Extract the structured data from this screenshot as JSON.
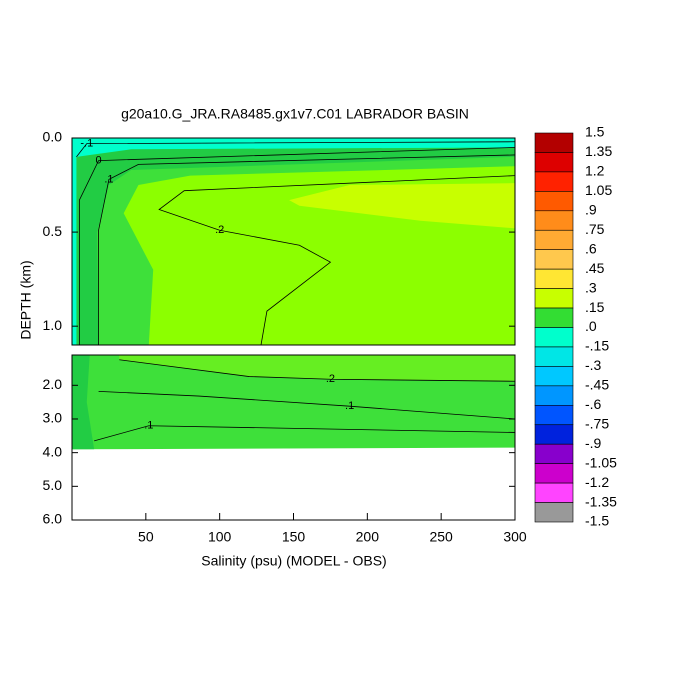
{
  "chart_data": {
    "type": "contour",
    "title": "g20a10.G_JRA.RA8485.gx1v7.C01 LABRADOR BASIN",
    "xlabel": "Salinity (psu) (MODEL - OBS)",
    "ylabel": "DEPTH (km)",
    "xlim": [
      0,
      300
    ],
    "xticks": [
      50,
      100,
      150,
      200,
      250,
      300
    ],
    "panels": [
      {
        "ylim": [
          0,
          1.1
        ],
        "yticks": [
          {
            "value": 0,
            "label": "0.0"
          },
          {
            "value": 0.5,
            "label": "0.5"
          },
          {
            "value": 1,
            "label": "1.0"
          }
        ],
        "regions": [
          {
            "color": "#22cc44",
            "points": [
              [
                0,
                0
              ],
              [
                300,
                0
              ],
              [
                300,
                1.1
              ],
              [
                0,
                1.1
              ]
            ]
          },
          {
            "color": "#3ee03a",
            "points": [
              [
                18,
                1.1
              ],
              [
                17,
                0.5
              ],
              [
                25,
                0.25
              ],
              [
                40,
                0.17
              ],
              [
                300,
                0.1
              ],
              [
                300,
                1.1
              ]
            ]
          },
          {
            "color": "#8cff00",
            "points": [
              [
                52,
                1.1
              ],
              [
                55,
                0.7
              ],
              [
                35,
                0.4
              ],
              [
                45,
                0.25
              ],
              [
                80,
                0.2
              ],
              [
                300,
                0.15
              ],
              [
                300,
                1.1
              ]
            ]
          },
          {
            "color": "#c8ff00",
            "points": [
              [
                147,
                0.33
              ],
              [
                188,
                0.25
              ],
              [
                300,
                0.24
              ],
              [
                300,
                0.48
              ],
              [
                236,
                0.44
              ],
              [
                154,
                0.36
              ]
            ]
          },
          {
            "color": "#00ffcc",
            "points": [
              [
                0,
                0
              ],
              [
                300,
                0
              ],
              [
                300,
                0.05
              ],
              [
                40,
                0.06
              ],
              [
                3,
                0.1
              ],
              [
                3,
                1.1
              ],
              [
                0,
                1.1
              ]
            ]
          }
        ],
        "contours": [
          {
            "label": ".2",
            "points": [
              [
                128,
                1.1
              ],
              [
                132,
                0.92
              ],
              [
                175,
                0.66
              ],
              [
                154,
                0.57
              ],
              [
                100,
                0.49
              ],
              [
                59,
                0.38
              ],
              [
                76,
                0.28
              ],
              [
                300,
                0.2
              ]
            ]
          },
          {
            "label": ".1",
            "points": [
              [
                18,
                1.1
              ],
              [
                18,
                0.49
              ],
              [
                25,
                0.22
              ],
              [
                45,
                0.14
              ],
              [
                300,
                0.09
              ]
            ]
          },
          {
            "label": "0",
            "points": [
              [
                5,
                1.1
              ],
              [
                5,
                0.33
              ],
              [
                18,
                0.12
              ],
              [
                300,
                0.05
              ]
            ]
          },
          {
            "label": "-.1",
            "points": [
              [
                3,
                0.1
              ],
              [
                10,
                0.03
              ],
              [
                300,
                0.02
              ]
            ]
          }
        ]
      },
      {
        "ylim": [
          1.1,
          6
        ],
        "yticks": [
          {
            "value": 2,
            "label": "2.0"
          },
          {
            "value": 3,
            "label": "3.0"
          },
          {
            "value": 4,
            "label": "4.0"
          },
          {
            "value": 5,
            "label": "5.0"
          },
          {
            "value": 6,
            "label": "6.0"
          }
        ],
        "regions": [
          {
            "color": "#3ee03a",
            "points": [
              [
                0,
                1.1
              ],
              [
                300,
                1.1
              ],
              [
                300,
                3.85
              ],
              [
                0,
                3.9
              ]
            ]
          },
          {
            "color": "#66ee22",
            "points": [
              [
                32,
                1.1
              ],
              [
                300,
                1.1
              ],
              [
                300,
                1.88
              ],
              [
                175,
                1.82
              ],
              [
                120,
                1.74
              ],
              [
                32,
                1.24
              ]
            ]
          },
          {
            "color": "#22cc44",
            "points": [
              [
                0,
                1.1
              ],
              [
                12,
                1.1
              ],
              [
                10,
                2.5
              ],
              [
                15,
                3.9
              ],
              [
                0,
                3.9
              ]
            ]
          }
        ],
        "contours": [
          {
            "label": ".2",
            "points": [
              [
                32,
                1.24
              ],
              [
                120,
                1.74
              ],
              [
                175,
                1.82
              ],
              [
                300,
                1.88
              ]
            ]
          },
          {
            "label": ".1",
            "points": [
              [
                18,
                2.18
              ],
              [
                86,
                2.32
              ],
              [
                188,
                2.62
              ],
              [
                300,
                3
              ]
            ]
          },
          {
            "label": ".1",
            "points": [
              [
                15,
                3.65
              ],
              [
                52,
                3.2
              ],
              [
                300,
                3.4
              ]
            ]
          }
        ]
      }
    ],
    "colorbar": {
      "levels": [
        1.5,
        1.35,
        1.2,
        1.05,
        {
          "value": 0.9,
          "label": ".9"
        },
        {
          "value": 0.75,
          "label": ".75"
        },
        {
          "value": 0.6,
          "label": ".6"
        },
        {
          "value": 0.45,
          "label": ".45"
        },
        {
          "value": 0.3,
          "label": ".3"
        },
        {
          "value": 0.15,
          "label": ".15"
        },
        {
          "value": 0,
          "label": ".0"
        },
        {
          "value": -0.15,
          "label": "-.15"
        },
        {
          "value": -0.3,
          "label": "-.3"
        },
        {
          "value": -0.45,
          "label": "-.45"
        },
        {
          "value": -0.6,
          "label": "-.6"
        },
        {
          "value": -0.75,
          "label": "-.75"
        },
        {
          "value": -0.9,
          "label": "-.9"
        },
        -1.05,
        -1.2,
        -1.35,
        -1.5
      ],
      "colors": [
        "#b30000",
        "#dd0000",
        "#ff2200",
        "#ff5a00",
        "#ff8c1a",
        "#ffaa33",
        "#ffc84d",
        "#ffe633",
        "#c8ff00",
        "#33dd33",
        "#00ffcc",
        "#00e6e6",
        "#00c8ff",
        "#0096ff",
        "#0055ff",
        "#0022dd",
        "#8800cc",
        "#cc00cc",
        "#ff44ff",
        "#999999"
      ]
    }
  }
}
